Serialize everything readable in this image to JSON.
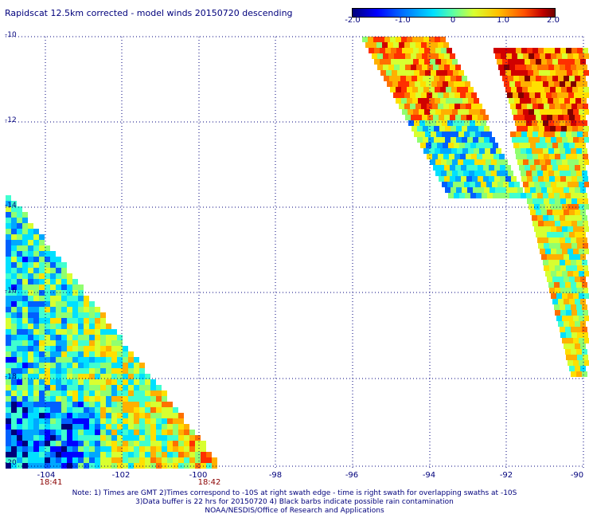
{
  "title": "Rapidscat 12.5km corrected - model winds 20150720 descending",
  "colorbar": {
    "ticks": [
      "-2.0",
      "-1.0",
      "0",
      "1.0",
      "2.0"
    ],
    "range": [
      -2.0,
      2.0
    ]
  },
  "y_ticks": [
    "-10",
    "-12",
    "-14",
    "-16",
    "-18",
    "-20"
  ],
  "x_ticks": [
    "-104",
    "-102",
    "-100",
    "-98",
    "-96",
    "-94",
    "-92",
    "-90"
  ],
  "swath_times": [
    "18:41",
    "18:42"
  ],
  "notes": [
    "Note: 1) Times are GMT 2)Times correspond to -10S at right swath edge - time is right swath for overlapping swaths at -10S",
    "3)Data buffer is 22 hrs for 20150720 4) Black barbs indicate possible rain contamination",
    "NOAA/NESDIS/Office of Research and Applications"
  ],
  "colors": {
    "text": "#00007c",
    "time_text": "#8b0000",
    "grid": "#00007c"
  }
}
